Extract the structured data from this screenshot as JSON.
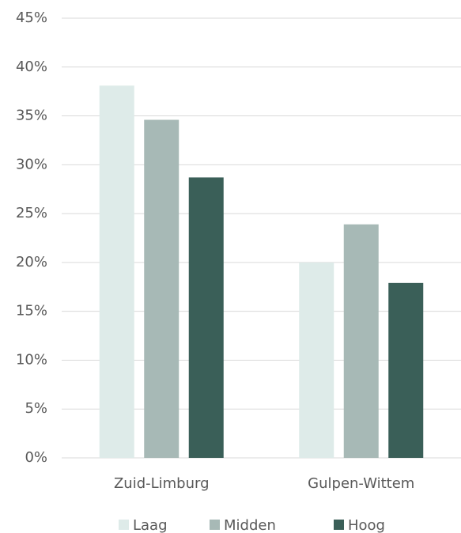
{
  "chart_data": {
    "type": "bar",
    "categories": [
      "Zuid-Limburg",
      "Gulpen-Wittem"
    ],
    "series": [
      {
        "name": "Laag",
        "color": "#deebe9",
        "values": [
          38.1,
          20.0
        ]
      },
      {
        "name": "Midden",
        "color": "#a7b9b6",
        "values": [
          34.6,
          23.9
        ]
      },
      {
        "name": "Hoog",
        "color": "#3a5f58",
        "values": [
          28.7,
          17.9
        ]
      }
    ],
    "ylim": [
      0,
      45
    ],
    "yticks": [
      {
        "value": 0,
        "label": "0%"
      },
      {
        "value": 5,
        "label": "5%"
      },
      {
        "value": 10,
        "label": "10%"
      },
      {
        "value": 15,
        "label": "15%"
      },
      {
        "value": 20,
        "label": "20%"
      },
      {
        "value": 25,
        "label": "25%"
      },
      {
        "value": 30,
        "label": "30%"
      },
      {
        "value": 35,
        "label": "35%"
      },
      {
        "value": 40,
        "label": "40%"
      },
      {
        "value": 45,
        "label": "45%"
      }
    ],
    "grid": true,
    "legend": "bottom"
  }
}
